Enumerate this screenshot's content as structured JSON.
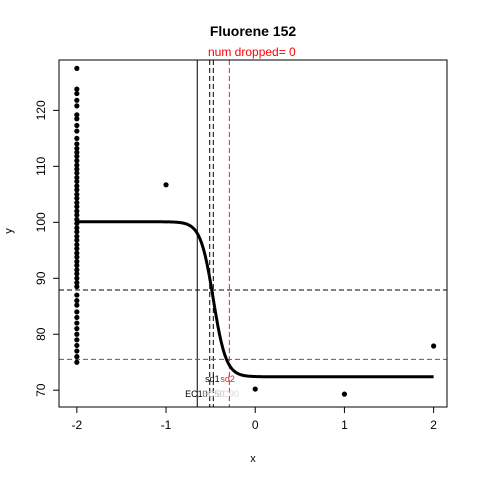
{
  "chart_data": {
    "type": "scatter",
    "title": "Fluorene 152",
    "subtitle": "num dropped= 0",
    "xlabel": "x",
    "ylabel": "y",
    "xlim": [
      -2.2,
      2.15
    ],
    "ylim": [
      67,
      129
    ],
    "xticks": [
      -2,
      -1,
      0,
      1,
      2
    ],
    "yticks": [
      70,
      80,
      90,
      100,
      110,
      120
    ],
    "grid": false,
    "points": [
      [
        -2,
        127.5
      ],
      [
        -2,
        123.8
      ],
      [
        -2,
        123.0
      ],
      [
        -2,
        121.8
      ],
      [
        -2,
        120.8
      ],
      [
        -2,
        119.2
      ],
      [
        -2,
        118.5
      ],
      [
        -2,
        117.3
      ],
      [
        -2,
        116.3
      ],
      [
        -2,
        115.0
      ],
      [
        -2,
        114.0
      ],
      [
        -2,
        113.2
      ],
      [
        -2,
        112.5
      ],
      [
        -2,
        111.8
      ],
      [
        -2,
        111.0
      ],
      [
        -2,
        110.2
      ],
      [
        -2,
        109.5
      ],
      [
        -2,
        108.8
      ],
      [
        -2,
        108.0
      ],
      [
        -2,
        107.3
      ],
      [
        -2,
        106.5
      ],
      [
        -2,
        105.8
      ],
      [
        -2,
        105.0
      ],
      [
        -2,
        104.3
      ],
      [
        -2,
        103.5
      ],
      [
        -2,
        102.8
      ],
      [
        -2,
        102.0
      ],
      [
        -2,
        101.3
      ],
      [
        -2,
        100.5
      ],
      [
        -2,
        99.8
      ],
      [
        -2,
        99.0
      ],
      [
        -2,
        98.3
      ],
      [
        -2,
        97.5
      ],
      [
        -2,
        96.8
      ],
      [
        -2,
        96.0
      ],
      [
        -2,
        95.3
      ],
      [
        -2,
        94.5
      ],
      [
        -2,
        93.8
      ],
      [
        -2,
        93.0
      ],
      [
        -2,
        92.3
      ],
      [
        -2,
        91.5
      ],
      [
        -2,
        90.8
      ],
      [
        -2,
        90.0
      ],
      [
        -2,
        89.2
      ],
      [
        -2,
        88.5
      ],
      [
        -2,
        87.0
      ],
      [
        -2,
        86.0
      ],
      [
        -2,
        85.2
      ],
      [
        -2,
        84.0
      ],
      [
        -2,
        83.0
      ],
      [
        -2,
        82.0
      ],
      [
        -2,
        81.0
      ],
      [
        -2,
        80.0
      ],
      [
        -2,
        79.0
      ],
      [
        -2,
        78.0
      ],
      [
        -2,
        77.0
      ],
      [
        -2,
        76.0
      ],
      [
        -2,
        75.0
      ],
      [
        -1,
        106.7
      ],
      [
        0,
        70.2
      ],
      [
        1,
        69.3
      ],
      [
        2,
        77.9
      ]
    ],
    "curve": {
      "top": 100.1,
      "bottom": 72.4,
      "center": -0.47,
      "slope": 14
    },
    "reference_lines": {
      "vertical": [
        {
          "x": -0.65,
          "color": "#000000",
          "style": "solid"
        },
        {
          "x": -0.51,
          "color": "#000000",
          "style": "dashed"
        },
        {
          "x": -0.47,
          "color": "#000000",
          "style": "dashed"
        },
        {
          "x": -0.29,
          "color": "#d62728",
          "style": "dashed"
        }
      ],
      "horizontal": [
        {
          "y": 87.9,
          "color": "#000000",
          "style": "dashed"
        },
        {
          "y": 75.5,
          "color": "#d62728",
          "style": "dashed"
        }
      ]
    },
    "annotations": [
      {
        "text": "sd1",
        "x": -0.48,
        "y": 71.5,
        "color": "#000000"
      },
      {
        "text": "sd2",
        "x": -0.31,
        "y": 71.5,
        "color": "#d62728"
      },
      {
        "text": "EC10",
        "x": -0.66,
        "y": 68.8,
        "color": "#000000"
      },
      {
        "text": "EC50",
        "x": -0.47,
        "y": 68.8,
        "color": "#bbbbbb"
      },
      {
        "text": "EC90",
        "x": -0.31,
        "y": 68.8,
        "color": "#dddddd"
      }
    ]
  }
}
